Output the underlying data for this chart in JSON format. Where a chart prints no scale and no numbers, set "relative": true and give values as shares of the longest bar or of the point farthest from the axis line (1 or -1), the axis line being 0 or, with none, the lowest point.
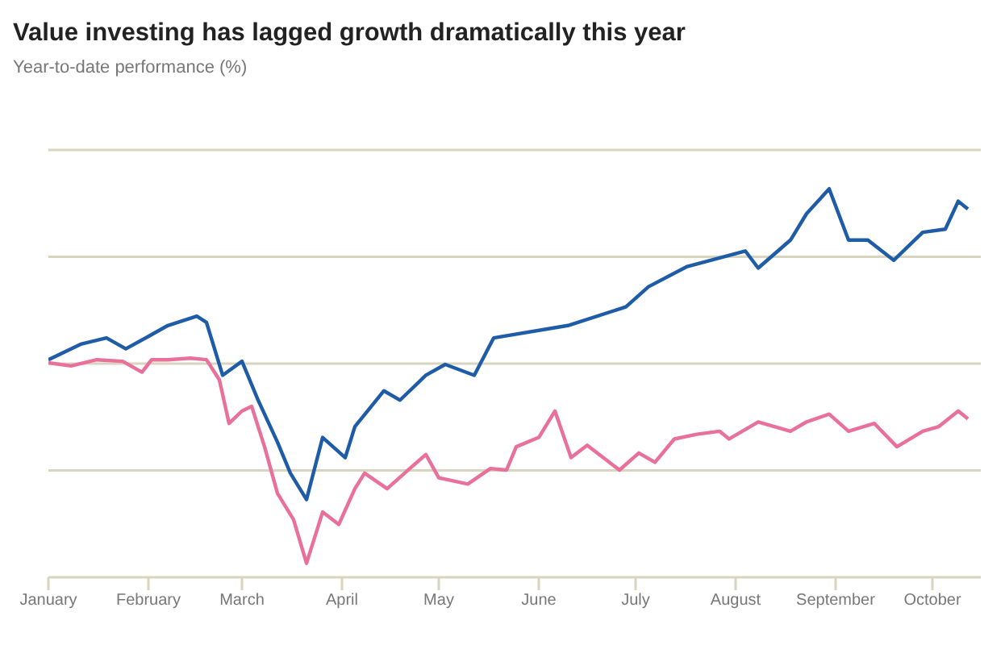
{
  "chart_data": {
    "type": "line",
    "title": "Value investing has lagged growth dramatically this year",
    "subtitle": "Year-to-date performance (%)",
    "relative": true,
    "grid": "y",
    "marker": "none",
    "line_style": "solid",
    "xlim": [
      "--01-01",
      "--10-16"
    ],
    "xticks": [
      {
        "value": "--01-01",
        "label": "January"
      },
      {
        "value": "--02-01",
        "label": "February"
      },
      {
        "value": "--03-01",
        "label": "March"
      },
      {
        "value": "--04-01",
        "label": "April"
      },
      {
        "value": "--05-01",
        "label": "May"
      },
      {
        "value": "--06-01",
        "label": "June"
      },
      {
        "value": "--07-01",
        "label": "July"
      },
      {
        "value": "--08-01",
        "label": "August"
      },
      {
        "value": "--09-01",
        "label": "September"
      },
      {
        "value": "--10-01",
        "label": "October"
      }
    ],
    "series": [
      {
        "color": "#1f5ca8",
        "x": [
          "--01-01",
          "--01-11",
          "--01-19",
          "--01-25",
          "--02-01",
          "--02-07",
          "--02-16",
          "--02-19",
          "--02-24",
          "--03-01",
          "--03-06",
          "--03-12",
          "--03-16",
          "--03-21",
          "--03-26",
          "--04-02",
          "--04-05",
          "--04-14",
          "--04-19",
          "--04-27",
          "--05-03",
          "--05-12",
          "--05-18",
          "--06-10",
          "--06-28",
          "--07-05",
          "--07-17",
          "--08-04",
          "--08-08",
          "--08-18",
          "--08-23",
          "--08-30",
          "--09-05",
          "--09-11",
          "--09-19",
          "--09-28",
          "--10-05",
          "--10-09",
          "--10-12"
        ],
        "values": [
          0.56,
          0.6,
          0.616,
          0.588,
          0.62,
          0.648,
          0.672,
          0.656,
          0.52,
          0.556,
          0.456,
          0.348,
          0.268,
          0.2,
          0.36,
          0.308,
          0.388,
          0.48,
          0.456,
          0.52,
          0.548,
          0.52,
          0.616,
          0.648,
          0.696,
          0.748,
          0.8,
          0.84,
          0.796,
          0.868,
          0.936,
          1,
          0.868,
          0.868,
          0.816,
          0.888,
          0.896,
          0.968,
          0.948
        ]
      },
      {
        "color": "#e8709a",
        "x": [
          "--01-01",
          "--01-08",
          "--01-16",
          "--01-24",
          "--01-30",
          "--02-02",
          "--02-07",
          "--02-14",
          "--02-19",
          "--02-23",
          "--02-26",
          "--03-01",
          "--03-04",
          "--03-08",
          "--03-12",
          "--03-17",
          "--03-21",
          "--03-26",
          "--03-31",
          "--04-05",
          "--04-08",
          "--04-15",
          "--04-22",
          "--04-27",
          "--05-01",
          "--05-10",
          "--05-17",
          "--05-22",
          "--05-25",
          "--06-01",
          "--06-06",
          "--06-11",
          "--06-16",
          "--06-26",
          "--07-02",
          "--07-07",
          "--07-13",
          "--07-20",
          "--07-27",
          "--07-30",
          "--08-08",
          "--08-18",
          "--08-23",
          "--08-30",
          "--09-05",
          "--09-13",
          "--09-20",
          "--09-28",
          "--10-03",
          "--10-09",
          "--10-12"
        ],
        "values": [
          0.552,
          0.544,
          0.56,
          0.556,
          0.528,
          0.56,
          0.56,
          0.564,
          0.56,
          0.508,
          0.396,
          0.428,
          0.44,
          0.336,
          0.216,
          0.148,
          0.036,
          0.168,
          0.136,
          0.228,
          0.268,
          0.228,
          0.28,
          0.316,
          0.256,
          0.24,
          0.28,
          0.276,
          0.336,
          0.36,
          0.428,
          0.308,
          0.34,
          0.276,
          0.32,
          0.296,
          0.356,
          0.368,
          0.376,
          0.356,
          0.4,
          0.376,
          0.4,
          0.42,
          0.376,
          0.396,
          0.336,
          0.376,
          0.388,
          0.428,
          0.408
        ]
      }
    ]
  }
}
